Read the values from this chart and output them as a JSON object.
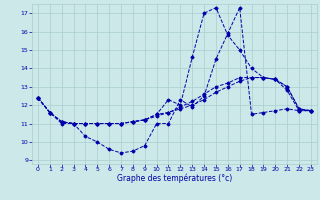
{
  "xlabel": "Graphe des températures (°c)",
  "bg_color": "#cce8e8",
  "grid_color": "#aacece",
  "line_color": "#0000aa",
  "line1_x": [
    0,
    1,
    2,
    3,
    4,
    5,
    6,
    7,
    8,
    9,
    10,
    11,
    12,
    13,
    14,
    15,
    16,
    17,
    18,
    19,
    20,
    21,
    22,
    23
  ],
  "line1_y": [
    12.4,
    11.6,
    11.0,
    11.0,
    10.3,
    10.0,
    9.6,
    9.4,
    9.5,
    9.8,
    11.0,
    11.0,
    12.3,
    11.9,
    12.5,
    14.5,
    15.9,
    17.3,
    11.5,
    11.6,
    11.7,
    11.8,
    11.7,
    11.7
  ],
  "line2_x": [
    0,
    1,
    2,
    3,
    4,
    5,
    6,
    7,
    8,
    9,
    10,
    11,
    12,
    13,
    14,
    15,
    16,
    17,
    18,
    19,
    20,
    21,
    22,
    23
  ],
  "line2_y": [
    12.4,
    11.6,
    11.1,
    11.0,
    11.0,
    11.0,
    11.0,
    11.0,
    11.1,
    11.2,
    11.4,
    11.6,
    11.8,
    12.0,
    12.3,
    12.7,
    13.0,
    13.3,
    13.5,
    13.5,
    13.4,
    13.0,
    11.8,
    11.7
  ],
  "line3_x": [
    0,
    1,
    2,
    3,
    4,
    5,
    6,
    7,
    8,
    9,
    10,
    11,
    12,
    13,
    14,
    15,
    16,
    17,
    18,
    19,
    20,
    21,
    22,
    23
  ],
  "line3_y": [
    12.4,
    11.6,
    11.1,
    11.0,
    11.0,
    11.0,
    11.0,
    11.0,
    11.1,
    11.2,
    11.5,
    12.3,
    12.0,
    14.6,
    17.0,
    17.3,
    15.8,
    15.0,
    14.0,
    13.5,
    13.4,
    12.8,
    11.7,
    11.7
  ],
  "line4_x": [
    0,
    1,
    2,
    3,
    4,
    5,
    6,
    7,
    8,
    9,
    10,
    11,
    12,
    13,
    14,
    15,
    16,
    17,
    18,
    19,
    20,
    21,
    22,
    23
  ],
  "line4_y": [
    12.4,
    11.6,
    11.1,
    11.0,
    11.0,
    11.0,
    11.0,
    11.0,
    11.1,
    11.2,
    11.5,
    11.6,
    11.9,
    12.2,
    12.6,
    13.0,
    13.2,
    13.5,
    13.5,
    13.5,
    13.4,
    13.0,
    11.8,
    11.7
  ],
  "xlim": [
    -0.5,
    23.5
  ],
  "ylim": [
    8.8,
    17.5
  ],
  "xticks": [
    0,
    1,
    2,
    3,
    4,
    5,
    6,
    7,
    8,
    9,
    10,
    11,
    12,
    13,
    14,
    15,
    16,
    17,
    18,
    19,
    20,
    21,
    22,
    23
  ],
  "yticks": [
    9,
    10,
    11,
    12,
    13,
    14,
    15,
    16,
    17
  ]
}
